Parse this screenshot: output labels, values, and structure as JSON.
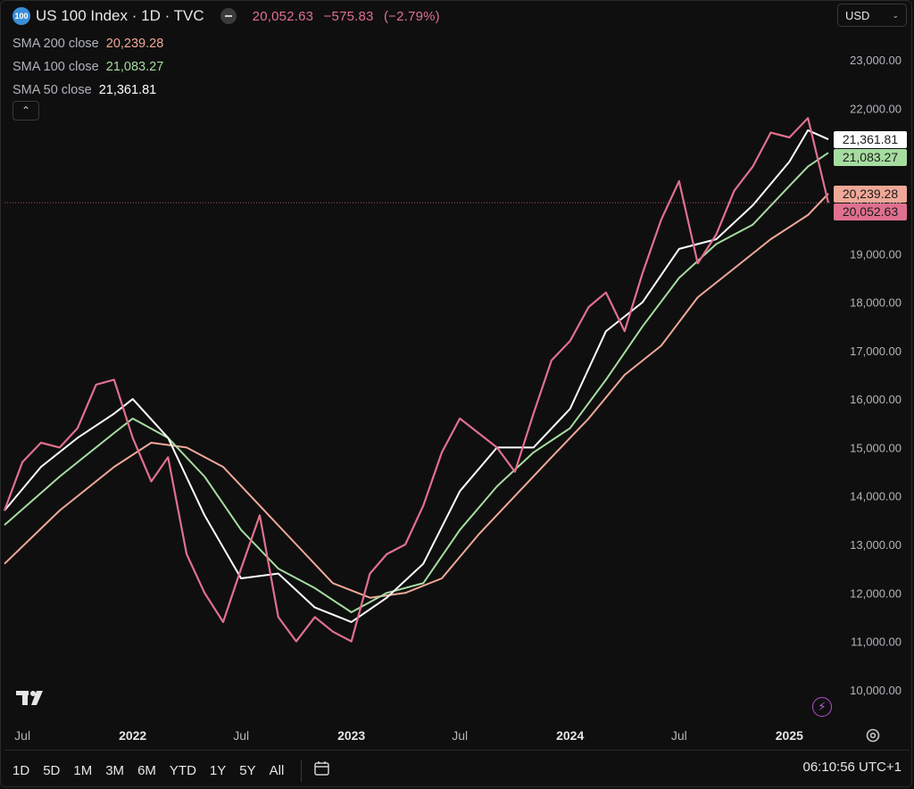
{
  "header": {
    "logo_text": "100",
    "title": "US 100 Index · 1D · TVC",
    "last_price": "20,052.63",
    "change": "−575.83",
    "change_pct": "(−2.79%)"
  },
  "currency": {
    "label": "USD"
  },
  "legend": {
    "items": [
      {
        "name": "SMA 200 close",
        "value": "20,239.28",
        "color": "#f0a898"
      },
      {
        "name": "SMA 100 close",
        "value": "21,083.27",
        "color": "#a6dca0"
      },
      {
        "name": "SMA 50 close",
        "value": "21,361.81",
        "color": "#ffffff"
      }
    ]
  },
  "price_tags": [
    {
      "value": "21,361.81",
      "price": 21361.81,
      "bg": "#ffffff",
      "fg": "#1a1a1a"
    },
    {
      "value": "21,083.27",
      "price": 21083.27,
      "bg": "#a6dca0",
      "fg": "#1a1a1a"
    },
    {
      "value": "20,239.28",
      "price": 20239.28,
      "bg": "#f0a898",
      "fg": "#1a1a1a"
    },
    {
      "value": "20,052.63",
      "price": 20052.63,
      "bg": "#e0708f",
      "fg": "#1a1a1a"
    }
  ],
  "bottom": {
    "ranges": [
      "1D",
      "5D",
      "1M",
      "3M",
      "6M",
      "YTD",
      "1Y",
      "5Y",
      "All"
    ],
    "clock": "06:10:56 UTC+1"
  },
  "colors": {
    "price": "#e0708f",
    "sma50": "#ffffff",
    "sma100": "#a6dca0",
    "sma200": "#f0a898"
  },
  "chart_data": {
    "type": "line",
    "title": "US 100 Index · 1D · TVC",
    "xlabel": "",
    "ylabel": "",
    "ylim": [
      9500,
      23500
    ],
    "yticks": [
      10000,
      11000,
      12000,
      13000,
      14000,
      15000,
      16000,
      17000,
      18000,
      19000,
      20000,
      21000,
      22000,
      23000
    ],
    "ytick_labels": [
      "10,000.00",
      "11,000.00",
      "12,000.00",
      "13,000.00",
      "14,000.00",
      "15,000.00",
      "16,000.00",
      "17,000.00",
      "18,000.00",
      "19,000.00",
      "20,000.00",
      "21,000.00",
      "22,000.00",
      "23,000.00"
    ],
    "xlim": [
      "2021-06-01",
      "2025-03-10"
    ],
    "xticks": [
      {
        "date": "2021-07-01",
        "label": "Jul"
      },
      {
        "date": "2022-01-01",
        "label": "2022"
      },
      {
        "date": "2022-07-01",
        "label": "Jul"
      },
      {
        "date": "2023-01-01",
        "label": "2023"
      },
      {
        "date": "2023-07-01",
        "label": "Jul"
      },
      {
        "date": "2024-01-01",
        "label": "2024"
      },
      {
        "date": "2024-07-01",
        "label": "Jul"
      },
      {
        "date": "2025-01-01",
        "label": "2025"
      }
    ],
    "grid": false,
    "last_price_line": 20052.63,
    "series": [
      {
        "name": "US 100 Index",
        "x": [
          "2021-06-01",
          "2021-07-01",
          "2021-08-01",
          "2021-09-01",
          "2021-10-01",
          "2021-11-01",
          "2021-12-01",
          "2022-01-01",
          "2022-02-01",
          "2022-03-01",
          "2022-04-01",
          "2022-05-01",
          "2022-06-01",
          "2022-07-01",
          "2022-08-01",
          "2022-09-01",
          "2022-10-01",
          "2022-11-01",
          "2022-12-01",
          "2023-01-01",
          "2023-02-01",
          "2023-03-01",
          "2023-04-01",
          "2023-05-01",
          "2023-06-01",
          "2023-07-01",
          "2023-08-01",
          "2023-09-01",
          "2023-10-01",
          "2023-11-01",
          "2023-12-01",
          "2024-01-01",
          "2024-02-01",
          "2024-03-01",
          "2024-04-01",
          "2024-05-01",
          "2024-06-01",
          "2024-07-01",
          "2024-08-01",
          "2024-09-01",
          "2024-10-01",
          "2024-11-01",
          "2024-12-01",
          "2025-01-01",
          "2025-02-01",
          "2025-03-07"
        ],
        "values": [
          13700,
          14700,
          15100,
          15000,
          15400,
          16300,
          16400,
          15200,
          14300,
          14800,
          12800,
          12000,
          11400,
          12500,
          13600,
          11500,
          11000,
          11500,
          11200,
          11000,
          12400,
          12800,
          13000,
          13800,
          14900,
          15600,
          15300,
          15000,
          14500,
          15700,
          16800,
          17200,
          17900,
          18200,
          17400,
          18600,
          19700,
          20500,
          18800,
          19400,
          20300,
          20800,
          21500,
          21400,
          21800,
          20052.63
        ]
      },
      {
        "name": "SMA 50 close",
        "x": [
          "2021-06-01",
          "2021-08-01",
          "2021-10-01",
          "2021-12-01",
          "2022-01-01",
          "2022-03-01",
          "2022-05-01",
          "2022-07-01",
          "2022-09-01",
          "2022-11-01",
          "2023-01-01",
          "2023-03-01",
          "2023-05-01",
          "2023-07-01",
          "2023-09-01",
          "2023-11-01",
          "2024-01-01",
          "2024-03-01",
          "2024-05-01",
          "2024-07-01",
          "2024-09-01",
          "2024-11-01",
          "2025-01-01",
          "2025-02-01",
          "2025-03-07"
        ],
        "values": [
          13700,
          14600,
          15200,
          15700,
          16000,
          15200,
          13600,
          12300,
          12400,
          11700,
          11400,
          11900,
          12600,
          14100,
          15000,
          15000,
          15800,
          17400,
          18000,
          19100,
          19300,
          20000,
          20900,
          21550,
          21361.81
        ]
      },
      {
        "name": "SMA 100 close",
        "x": [
          "2021-06-01",
          "2021-09-01",
          "2021-12-01",
          "2022-01-01",
          "2022-03-01",
          "2022-05-01",
          "2022-07-01",
          "2022-09-01",
          "2022-11-01",
          "2023-01-01",
          "2023-03-01",
          "2023-05-01",
          "2023-07-01",
          "2023-09-01",
          "2023-11-01",
          "2024-01-01",
          "2024-03-01",
          "2024-05-01",
          "2024-07-01",
          "2024-09-01",
          "2024-11-01",
          "2025-01-01",
          "2025-02-01",
          "2025-03-07"
        ],
        "values": [
          13400,
          14400,
          15300,
          15600,
          15200,
          14400,
          13300,
          12500,
          12100,
          11600,
          12000,
          12200,
          13300,
          14200,
          14900,
          15400,
          16400,
          17500,
          18500,
          19200,
          19600,
          20400,
          20800,
          21083.27
        ]
      },
      {
        "name": "SMA 200 close",
        "x": [
          "2021-06-01",
          "2021-09-01",
          "2021-12-01",
          "2022-02-01",
          "2022-04-01",
          "2022-06-01",
          "2022-08-01",
          "2022-10-01",
          "2022-12-01",
          "2023-02-01",
          "2023-04-01",
          "2023-06-01",
          "2023-08-01",
          "2023-10-01",
          "2023-12-01",
          "2024-02-01",
          "2024-04-01",
          "2024-06-01",
          "2024-08-01",
          "2024-10-01",
          "2024-12-01",
          "2025-02-01",
          "2025-03-07"
        ],
        "values": [
          12600,
          13700,
          14600,
          15100,
          15000,
          14600,
          13800,
          13000,
          12200,
          11900,
          12000,
          12300,
          13200,
          14000,
          14800,
          15600,
          16500,
          17100,
          18100,
          18700,
          19300,
          19800,
          20239.28
        ]
      }
    ]
  }
}
